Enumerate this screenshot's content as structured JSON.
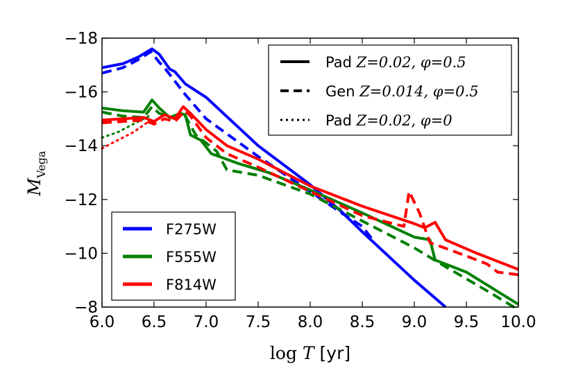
{
  "chart_data": {
    "type": "line",
    "xlabel": "log T [yr]",
    "ylabel": "M_Vega",
    "xlim": [
      6.0,
      10.0
    ],
    "ylim": [
      -8,
      -18
    ],
    "y_inverted": true,
    "grid": false,
    "x_ticks": [
      "6.0",
      "6.5",
      "7.0",
      "7.5",
      "8.0",
      "8.5",
      "9.0",
      "9.5",
      "10.0"
    ],
    "y_ticks": [
      "−18",
      "−16",
      "−14",
      "−12",
      "−10",
      "−8"
    ],
    "style_legend": {
      "placement": "top-right",
      "entries": [
        {
          "style": "solid",
          "text": "Pad Z=0.02, φ=0.5"
        },
        {
          "style": "dashed",
          "text": "Gen Z=0.014, φ=0.5"
        },
        {
          "style": "dotted",
          "text": "Pad Z=0.02, φ=0"
        }
      ]
    },
    "filter_legend": {
      "placement": "bottom-left",
      "entries": [
        {
          "name": "F275W",
          "color": "#0000ff"
        },
        {
          "name": "F555W",
          "color": "#008000"
        },
        {
          "name": "F814W",
          "color": "#ff0000"
        }
      ]
    },
    "series": [
      {
        "name": "F275W",
        "variant": "solid",
        "color": "#0000ff",
        "x": [
          6.0,
          6.2,
          6.35,
          6.48,
          6.55,
          6.65,
          6.7,
          6.8,
          7.0,
          7.5,
          8.0,
          8.3,
          8.5,
          9.0,
          9.3
        ],
        "y": [
          -16.9,
          -17.05,
          -17.3,
          -17.6,
          -17.4,
          -16.85,
          -16.75,
          -16.3,
          -15.8,
          -14.0,
          -12.55,
          -11.55,
          -10.8,
          -9.0,
          -8.0
        ]
      },
      {
        "name": "F275W",
        "variant": "dashed",
        "color": "#0000ff",
        "x": [
          6.0,
          6.2,
          6.35,
          6.47,
          6.55,
          6.6,
          6.8,
          7.0,
          7.5,
          8.0,
          8.3,
          8.5,
          8.6
        ],
        "y": [
          -16.7,
          -16.9,
          -17.2,
          -17.5,
          -17.1,
          -16.9,
          -15.9,
          -15.0,
          -13.6,
          -12.3,
          -11.5,
          -11.0,
          -10.5
        ]
      },
      {
        "name": "F555W",
        "variant": "solid",
        "color": "#008000",
        "x": [
          6.0,
          6.2,
          6.4,
          6.48,
          6.55,
          6.65,
          6.75,
          6.8,
          6.85,
          6.95,
          7.05,
          7.3,
          7.6,
          8.0,
          8.5,
          9.0,
          9.15,
          9.2,
          9.5,
          10.0
        ],
        "y": [
          -15.4,
          -15.3,
          -15.25,
          -15.7,
          -15.4,
          -15.05,
          -15.2,
          -15.15,
          -14.4,
          -14.2,
          -13.7,
          -13.35,
          -13.0,
          -12.35,
          -11.5,
          -10.6,
          -10.5,
          -9.75,
          -9.3,
          -8.1
        ]
      },
      {
        "name": "F555W",
        "variant": "dashed",
        "color": "#008000",
        "x": [
          6.0,
          6.2,
          6.4,
          6.48,
          6.55,
          6.7,
          6.8,
          6.9,
          7.1,
          7.2,
          7.5,
          8.0,
          8.5,
          9.0,
          9.3,
          9.7,
          10.0
        ],
        "y": [
          -15.25,
          -15.1,
          -15.05,
          -15.45,
          -15.2,
          -15.0,
          -15.1,
          -14.4,
          -13.8,
          -13.1,
          -12.9,
          -12.2,
          -11.2,
          -10.2,
          -9.5,
          -8.6,
          -7.9
        ]
      },
      {
        "name": "F555W",
        "variant": "dotted",
        "color": "#008000",
        "x": [
          6.0,
          6.15,
          6.3,
          6.45
        ],
        "y": [
          -14.3,
          -14.5,
          -14.8,
          -15.1
        ]
      },
      {
        "name": "F814W",
        "variant": "solid",
        "color": "#ff0000",
        "x": [
          6.0,
          6.2,
          6.4,
          6.5,
          6.6,
          6.7,
          6.78,
          6.85,
          7.0,
          7.2,
          7.5,
          8.0,
          8.5,
          9.0,
          9.1,
          9.2,
          9.3,
          9.6,
          10.0
        ],
        "y": [
          -14.95,
          -15.0,
          -15.05,
          -14.9,
          -15.15,
          -15.0,
          -15.45,
          -15.2,
          -14.6,
          -14.0,
          -13.5,
          -12.5,
          -11.75,
          -11.1,
          -10.95,
          -11.15,
          -10.5,
          -10.0,
          -9.4
        ]
      },
      {
        "name": "F814W",
        "variant": "dashed",
        "color": "#ff0000",
        "x": [
          6.0,
          6.2,
          6.4,
          6.5,
          6.6,
          6.7,
          6.8,
          6.85,
          7.0,
          7.2,
          7.5,
          8.0,
          8.5,
          8.9,
          8.95,
          9.05,
          9.15,
          9.5,
          9.7,
          9.8,
          10.0
        ],
        "y": [
          -14.85,
          -14.9,
          -14.95,
          -14.8,
          -15.0,
          -14.9,
          -15.3,
          -15.1,
          -14.3,
          -13.7,
          -13.2,
          -12.3,
          -11.4,
          -11.0,
          -12.3,
          -11.5,
          -10.4,
          -9.9,
          -9.6,
          -9.3,
          -9.2
        ]
      },
      {
        "name": "F814W",
        "variant": "dotted",
        "color": "#ff0000",
        "x": [
          6.0,
          6.15,
          6.3,
          6.45
        ],
        "y": [
          -13.9,
          -14.2,
          -14.5,
          -14.9
        ]
      }
    ]
  }
}
